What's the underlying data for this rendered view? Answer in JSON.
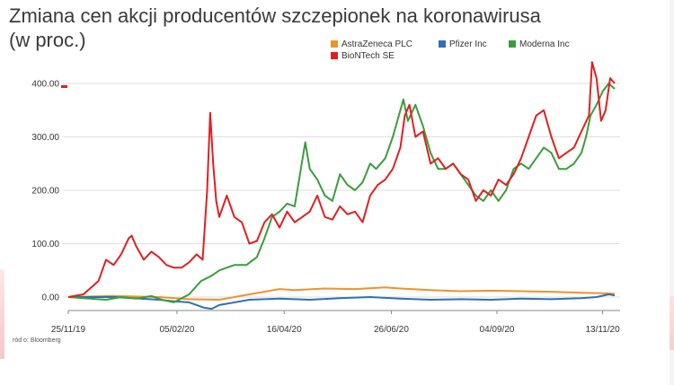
{
  "chart_data": {
    "type": "line",
    "title": "Zmiana cen akcji producentów szczepionek na koronawirusa (w proc.)",
    "source": "ród o: Bloomberg",
    "ylim": [
      -20,
      420
    ],
    "y_ticks": [
      "0.00",
      "100.00",
      "200.00",
      "300.00",
      "400.00"
    ],
    "x_ticks": [
      {
        "label": "25/11/19",
        "x": 0
      },
      {
        "label": "05/02/20",
        "x": 72
      },
      {
        "label": "16/04/20",
        "x": 143
      },
      {
        "label": "26/06/20",
        "x": 214
      },
      {
        "label": "04/09/20",
        "x": 284
      },
      {
        "label": "13/11/20",
        "x": 354
      }
    ],
    "legend_position": "top-right",
    "series": [
      {
        "name": "AstraZeneca PLC",
        "color": "#f0922b",
        "points": [
          [
            0,
            0
          ],
          [
            30,
            2
          ],
          [
            60,
            0
          ],
          [
            80,
            -4
          ],
          [
            100,
            -5
          ],
          [
            120,
            5
          ],
          [
            140,
            15
          ],
          [
            150,
            13
          ],
          [
            170,
            16
          ],
          [
            190,
            15
          ],
          [
            210,
            18
          ],
          [
            220,
            16
          ],
          [
            240,
            13
          ],
          [
            260,
            11
          ],
          [
            280,
            12
          ],
          [
            300,
            11
          ],
          [
            320,
            10
          ],
          [
            340,
            8
          ],
          [
            355,
            7
          ],
          [
            362,
            6
          ]
        ]
      },
      {
        "name": "Pfizer Inc",
        "color": "#2f6fb6",
        "points": [
          [
            0,
            0
          ],
          [
            30,
            0
          ],
          [
            60,
            -5
          ],
          [
            70,
            -8
          ],
          [
            80,
            -10
          ],
          [
            90,
            -20
          ],
          [
            95,
            -22
          ],
          [
            100,
            -15
          ],
          [
            120,
            -5
          ],
          [
            140,
            -3
          ],
          [
            160,
            -5
          ],
          [
            180,
            -2
          ],
          [
            200,
            0
          ],
          [
            220,
            -3
          ],
          [
            240,
            -5
          ],
          [
            260,
            -4
          ],
          [
            280,
            -5
          ],
          [
            300,
            -3
          ],
          [
            320,
            -4
          ],
          [
            340,
            -2
          ],
          [
            350,
            0
          ],
          [
            358,
            5
          ],
          [
            362,
            3
          ]
        ]
      },
      {
        "name": "Moderna Inc",
        "color": "#3c9c3c",
        "points": [
          [
            0,
            0
          ],
          [
            10,
            -2
          ],
          [
            25,
            -5
          ],
          [
            35,
            0
          ],
          [
            45,
            -3
          ],
          [
            55,
            2
          ],
          [
            62,
            -5
          ],
          [
            70,
            -10
          ],
          [
            80,
            5
          ],
          [
            88,
            30
          ],
          [
            95,
            40
          ],
          [
            100,
            50
          ],
          [
            110,
            60
          ],
          [
            118,
            60
          ],
          [
            125,
            75
          ],
          [
            130,
            110
          ],
          [
            135,
            150
          ],
          [
            140,
            160
          ],
          [
            145,
            175
          ],
          [
            150,
            170
          ],
          [
            157,
            290
          ],
          [
            160,
            240
          ],
          [
            165,
            220
          ],
          [
            170,
            190
          ],
          [
            175,
            180
          ],
          [
            180,
            230
          ],
          [
            185,
            210
          ],
          [
            190,
            200
          ],
          [
            195,
            215
          ],
          [
            200,
            250
          ],
          [
            204,
            240
          ],
          [
            210,
            260
          ],
          [
            215,
            300
          ],
          [
            220,
            350
          ],
          [
            222,
            370
          ],
          [
            225,
            330
          ],
          [
            230,
            360
          ],
          [
            235,
            320
          ],
          [
            240,
            270
          ],
          [
            245,
            240
          ],
          [
            250,
            240
          ],
          [
            255,
            250
          ],
          [
            260,
            230
          ],
          [
            265,
            210
          ],
          [
            270,
            190
          ],
          [
            275,
            180
          ],
          [
            280,
            200
          ],
          [
            285,
            180
          ],
          [
            290,
            200
          ],
          [
            295,
            240
          ],
          [
            300,
            250
          ],
          [
            305,
            240
          ],
          [
            310,
            260
          ],
          [
            315,
            280
          ],
          [
            320,
            270
          ],
          [
            325,
            240
          ],
          [
            330,
            240
          ],
          [
            335,
            250
          ],
          [
            340,
            270
          ],
          [
            343,
            300
          ],
          [
            346,
            340
          ],
          [
            350,
            360
          ],
          [
            354,
            385
          ],
          [
            358,
            400
          ],
          [
            362,
            390
          ]
        ]
      },
      {
        "name": "BioNTech SE",
        "color": "#e02020",
        "points": [
          [
            0,
            0
          ],
          [
            10,
            5
          ],
          [
            20,
            30
          ],
          [
            25,
            70
          ],
          [
            30,
            60
          ],
          [
            35,
            80
          ],
          [
            40,
            110
          ],
          [
            42,
            115
          ],
          [
            45,
            95
          ],
          [
            50,
            70
          ],
          [
            55,
            85
          ],
          [
            60,
            75
          ],
          [
            65,
            60
          ],
          [
            70,
            55
          ],
          [
            75,
            55
          ],
          [
            80,
            65
          ],
          [
            85,
            80
          ],
          [
            89,
            70
          ],
          [
            92,
            200
          ],
          [
            94,
            345
          ],
          [
            96,
            250
          ],
          [
            98,
            180
          ],
          [
            100,
            150
          ],
          [
            105,
            190
          ],
          [
            110,
            150
          ],
          [
            115,
            140
          ],
          [
            120,
            100
          ],
          [
            125,
            105
          ],
          [
            130,
            140
          ],
          [
            135,
            155
          ],
          [
            140,
            130
          ],
          [
            145,
            160
          ],
          [
            150,
            140
          ],
          [
            155,
            150
          ],
          [
            160,
            160
          ],
          [
            165,
            190
          ],
          [
            170,
            150
          ],
          [
            175,
            145
          ],
          [
            180,
            170
          ],
          [
            185,
            155
          ],
          [
            190,
            160
          ],
          [
            195,
            140
          ],
          [
            200,
            190
          ],
          [
            205,
            210
          ],
          [
            210,
            220
          ],
          [
            215,
            240
          ],
          [
            220,
            280
          ],
          [
            223,
            340
          ],
          [
            226,
            360
          ],
          [
            230,
            300
          ],
          [
            235,
            310
          ],
          [
            240,
            250
          ],
          [
            245,
            260
          ],
          [
            250,
            240
          ],
          [
            255,
            250
          ],
          [
            260,
            230
          ],
          [
            265,
            220
          ],
          [
            270,
            180
          ],
          [
            275,
            200
          ],
          [
            280,
            190
          ],
          [
            285,
            220
          ],
          [
            290,
            210
          ],
          [
            295,
            230
          ],
          [
            300,
            260
          ],
          [
            305,
            300
          ],
          [
            310,
            340
          ],
          [
            315,
            350
          ],
          [
            320,
            300
          ],
          [
            325,
            260
          ],
          [
            330,
            270
          ],
          [
            335,
            280
          ],
          [
            340,
            310
          ],
          [
            345,
            340
          ],
          [
            347,
            440
          ],
          [
            350,
            410
          ],
          [
            353,
            330
          ],
          [
            356,
            350
          ],
          [
            359,
            410
          ],
          [
            362,
            400
          ]
        ]
      }
    ]
  }
}
